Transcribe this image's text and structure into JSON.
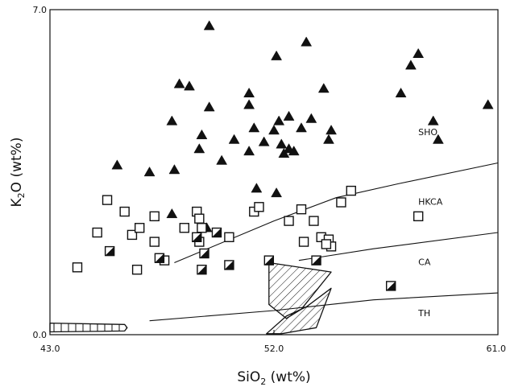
{
  "chart_data": {
    "type": "scatter",
    "title": "",
    "xlabel": "SiO",
    "xlabel_sub": "2",
    "xlabel_unit": "(wt%)",
    "ylabel": "K",
    "ylabel_sub": "2",
    "ylabel_unit": "O (wt%)",
    "xlim": [
      43.0,
      61.0
    ],
    "ylim": [
      0.0,
      7.0
    ],
    "xticks": [
      {
        "value": 43.0,
        "label": "43.0"
      },
      {
        "value": 52.0,
        "label": "52.0"
      },
      {
        "value": 61.0,
        "label": "61.0"
      }
    ],
    "yticks": [
      {
        "value": 0.0,
        "label": "0.0"
      },
      {
        "value": 7.0,
        "label": "7.0"
      }
    ],
    "grid": false,
    "field_labels": [
      {
        "text": "SHO",
        "x": 57.8,
        "y": 4.3
      },
      {
        "text": "HKCA",
        "x": 57.8,
        "y": 2.8
      },
      {
        "text": "CA",
        "x": 57.8,
        "y": 1.5
      },
      {
        "text": "TH",
        "x": 57.8,
        "y": 0.4
      }
    ],
    "boundaries": [
      {
        "name": "SHO/HKCA",
        "points": [
          [
            48.0,
            1.55
          ],
          [
            52.0,
            2.45
          ],
          [
            54.5,
            2.95
          ],
          [
            57.0,
            3.25
          ],
          [
            61.0,
            3.7
          ]
        ]
      },
      {
        "name": "HKCA/CA",
        "points": [
          [
            53.0,
            1.6
          ],
          [
            56.0,
            1.85
          ],
          [
            61.0,
            2.2
          ]
        ]
      },
      {
        "name": "CA/TH",
        "points": [
          [
            47.0,
            0.3
          ],
          [
            52.0,
            0.52
          ],
          [
            56.0,
            0.75
          ],
          [
            61.0,
            0.9
          ]
        ]
      }
    ],
    "series": [
      {
        "marker": "filled-triangle",
        "points": [
          [
            45.7,
            3.65
          ],
          [
            47.0,
            3.5
          ],
          [
            48.0,
            3.55
          ],
          [
            47.9,
            4.6
          ],
          [
            48.2,
            5.4
          ],
          [
            48.6,
            5.35
          ],
          [
            49.1,
            4.3
          ],
          [
            49.0,
            4.0
          ],
          [
            49.4,
            4.9
          ],
          [
            49.4,
            6.65
          ],
          [
            49.9,
            3.75
          ],
          [
            50.4,
            4.2
          ],
          [
            51.0,
            4.95
          ],
          [
            51.0,
            5.2
          ],
          [
            51.2,
            4.45
          ],
          [
            51.0,
            3.95
          ],
          [
            51.6,
            4.15
          ],
          [
            52.0,
            4.4
          ],
          [
            52.2,
            4.6
          ],
          [
            52.3,
            4.1
          ],
          [
            52.4,
            3.9
          ],
          [
            52.6,
            4.0
          ],
          [
            52.8,
            3.95
          ],
          [
            52.6,
            4.7
          ],
          [
            53.1,
            4.45
          ],
          [
            53.5,
            4.65
          ],
          [
            52.1,
            6.0
          ],
          [
            53.3,
            6.3
          ],
          [
            54.0,
            5.3
          ],
          [
            54.3,
            4.4
          ],
          [
            54.2,
            4.2
          ],
          [
            57.1,
            5.2
          ],
          [
            57.5,
            5.8
          ],
          [
            57.8,
            6.05
          ],
          [
            58.4,
            4.6
          ],
          [
            58.6,
            4.2
          ],
          [
            60.6,
            4.95
          ],
          [
            51.3,
            3.15
          ],
          [
            52.1,
            3.05
          ],
          [
            47.9,
            2.6
          ],
          [
            49.3,
            2.3
          ]
        ]
      },
      {
        "marker": "open-square",
        "points": [
          [
            44.1,
            1.45
          ],
          [
            44.9,
            2.2
          ],
          [
            45.3,
            2.9
          ],
          [
            46.0,
            2.65
          ],
          [
            46.3,
            2.15
          ],
          [
            46.6,
            2.3
          ],
          [
            47.2,
            2.55
          ],
          [
            47.2,
            2.0
          ],
          [
            46.5,
            1.4
          ],
          [
            47.6,
            1.6
          ],
          [
            48.4,
            2.3
          ],
          [
            48.9,
            2.65
          ],
          [
            49.0,
            2.5
          ],
          [
            49.1,
            2.3
          ],
          [
            49.0,
            2.0
          ],
          [
            50.2,
            2.1
          ],
          [
            51.2,
            2.65
          ],
          [
            51.4,
            2.75
          ],
          [
            52.6,
            2.45
          ],
          [
            53.1,
            2.7
          ],
          [
            53.2,
            2.0
          ],
          [
            53.6,
            2.45
          ],
          [
            53.9,
            2.1
          ],
          [
            54.2,
            2.05
          ],
          [
            54.3,
            1.9
          ],
          [
            54.1,
            1.95
          ],
          [
            54.7,
            2.85
          ],
          [
            55.1,
            3.1
          ],
          [
            57.8,
            2.55
          ]
        ]
      },
      {
        "marker": "half-filled-square",
        "points": [
          [
            45.4,
            1.8
          ],
          [
            47.4,
            1.65
          ],
          [
            49.2,
            1.75
          ],
          [
            49.1,
            1.4
          ],
          [
            49.7,
            2.2
          ],
          [
            50.2,
            1.5
          ],
          [
            51.8,
            1.6
          ],
          [
            53.7,
            1.6
          ],
          [
            56.7,
            1.05
          ],
          [
            48.9,
            2.1
          ]
        ]
      }
    ],
    "regions": [
      {
        "fill": "diagonal-hatch",
        "polygon": [
          [
            51.8,
            1.55
          ],
          [
            54.3,
            1.35
          ],
          [
            53.1,
            0.55
          ],
          [
            52.5,
            0.35
          ],
          [
            51.8,
            0.65
          ]
        ]
      },
      {
        "fill": "diagonal-hatch",
        "polygon": [
          [
            51.7,
            0.02
          ],
          [
            52.5,
            0.4
          ],
          [
            53.3,
            0.6
          ],
          [
            54.3,
            1.0
          ],
          [
            53.7,
            0.15
          ],
          [
            52.3,
            0.02
          ]
        ]
      },
      {
        "fill": "vertical-hatch",
        "polygon": [
          [
            43.0,
            0.25
          ],
          [
            46.0,
            0.22
          ],
          [
            46.1,
            0.15
          ],
          [
            46.0,
            0.08
          ],
          [
            43.0,
            0.06
          ]
        ]
      }
    ],
    "style": {
      "ink": "#111111",
      "background": "#ffffff"
    }
  }
}
